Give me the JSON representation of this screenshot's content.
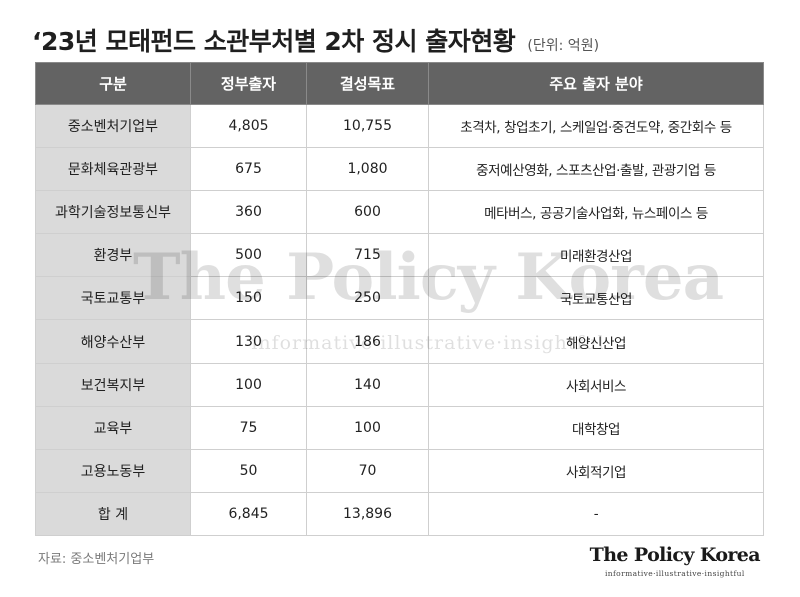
{
  "title": "‘23년 모태펀드 소관부처별 2차 정시 출자현황",
  "unit": "(단위: 억원)",
  "table": {
    "headers": [
      "구분",
      "정부출자",
      "결성목표",
      "주요 출자 분야"
    ],
    "rows": [
      {
        "ministry": "중소벤처기업부",
        "gov": "4,805",
        "target": "10,755",
        "field": "초격차, 창업초기, 스케일업·중견도약, 중간회수 등"
      },
      {
        "ministry": "문화체육관광부",
        "gov": "675",
        "target": "1,080",
        "field": "중저예산영화, 스포츠산업·출발, 관광기업 등"
      },
      {
        "ministry": "과학기술정보통신부",
        "gov": "360",
        "target": "600",
        "field": "메타버스, 공공기술사업화, 뉴스페이스 등"
      },
      {
        "ministry": "환경부",
        "gov": "500",
        "target": "715",
        "field": "미래환경산업"
      },
      {
        "ministry": "국토교통부",
        "gov": "150",
        "target": "250",
        "field": "국토교통산업"
      },
      {
        "ministry": "해양수산부",
        "gov": "130",
        "target": "186",
        "field": "해양신산업"
      },
      {
        "ministry": "보건복지부",
        "gov": "100",
        "target": "140",
        "field": "사회서비스"
      },
      {
        "ministry": "교육부",
        "gov": "75",
        "target": "100",
        "field": "대학창업"
      },
      {
        "ministry": "고용노동부",
        "gov": "50",
        "target": "70",
        "field": "사회적기업"
      },
      {
        "ministry": "합 계",
        "gov": "6,845",
        "target": "13,896",
        "field": "-"
      }
    ]
  },
  "watermark": {
    "main": "The Policy Korea",
    "sub": "informative·illustrative·insightful"
  },
  "source": "자료: 중소벤처기업부",
  "brand": {
    "name": "The Policy Korea",
    "tagline": "informative·illustrative·insightful"
  }
}
